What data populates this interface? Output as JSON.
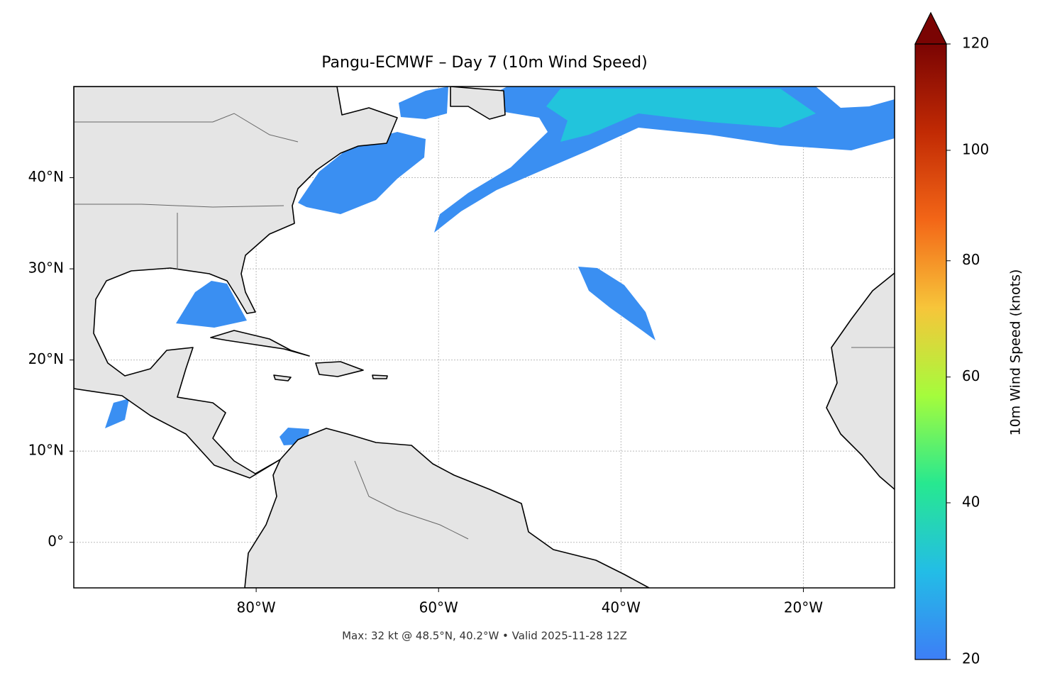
{
  "chart_data": {
    "type": "map",
    "title": "Pangu-ECMWF – Day 7 (10m Wind Speed)",
    "footer": "Max: 32 kt @ 48.5°N, 40.2°W • Valid 2025-11-28 12Z",
    "xlim": [
      -100,
      -10
    ],
    "ylim": [
      -5,
      50
    ],
    "xticks": [
      {
        "value": -80,
        "label": "80°W"
      },
      {
        "value": -60,
        "label": "60°W"
      },
      {
        "value": -40,
        "label": "40°W"
      },
      {
        "value": -20,
        "label": "20°W"
      }
    ],
    "yticks": [
      {
        "value": 0,
        "label": "0°"
      },
      {
        "value": 10,
        "label": "10°N"
      },
      {
        "value": 20,
        "label": "20°N"
      },
      {
        "value": 30,
        "label": "30°N"
      },
      {
        "value": 40,
        "label": "40°N"
      }
    ],
    "grid": true,
    "colorbar": {
      "label": "10m Wind Speed (knots)",
      "lim": [
        20,
        120
      ],
      "ticks": [
        20,
        40,
        60,
        80,
        100,
        120
      ],
      "colors": [
        "#3d7ef6",
        "#23bde6",
        "#27e890",
        "#a5fc3c",
        "#f7c53a",
        "#f36617",
        "#c12a04",
        "#7a0403"
      ]
    }
  }
}
